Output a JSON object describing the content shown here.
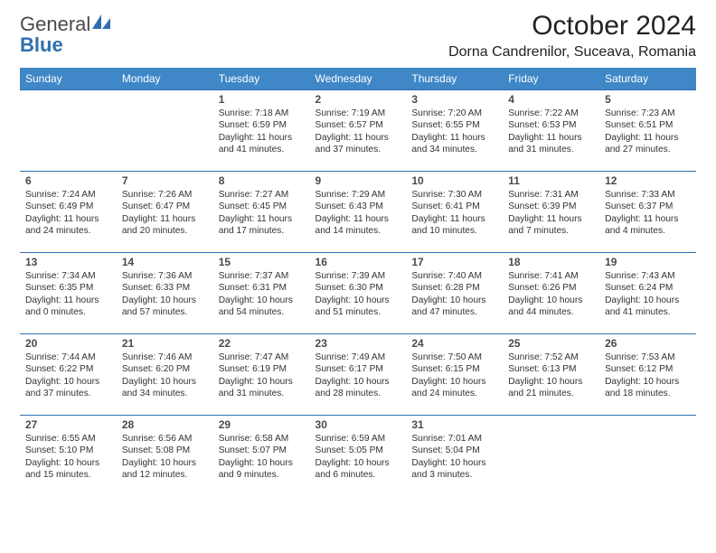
{
  "brand": {
    "line1": "General",
    "line2": "Blue"
  },
  "title": "October 2024",
  "location": "Dorna Candrenilor, Suceava, Romania",
  "theme": {
    "header_bg": "#3f87c7",
    "header_fg": "#ffffff",
    "rule": "#2f6fb0",
    "text": "#333333",
    "daynum": "#4a4a4a",
    "brand_gray": "#4a4a4a",
    "brand_blue": "#2f6fb0",
    "page_bg": "#ffffff"
  },
  "day_names": [
    "Sunday",
    "Monday",
    "Tuesday",
    "Wednesday",
    "Thursday",
    "Friday",
    "Saturday"
  ],
  "weeks": [
    [
      null,
      null,
      {
        "n": "1",
        "lines": [
          "Sunrise: 7:18 AM",
          "Sunset: 6:59 PM",
          "Daylight: 11 hours",
          "and 41 minutes."
        ]
      },
      {
        "n": "2",
        "lines": [
          "Sunrise: 7:19 AM",
          "Sunset: 6:57 PM",
          "Daylight: 11 hours",
          "and 37 minutes."
        ]
      },
      {
        "n": "3",
        "lines": [
          "Sunrise: 7:20 AM",
          "Sunset: 6:55 PM",
          "Daylight: 11 hours",
          "and 34 minutes."
        ]
      },
      {
        "n": "4",
        "lines": [
          "Sunrise: 7:22 AM",
          "Sunset: 6:53 PM",
          "Daylight: 11 hours",
          "and 31 minutes."
        ]
      },
      {
        "n": "5",
        "lines": [
          "Sunrise: 7:23 AM",
          "Sunset: 6:51 PM",
          "Daylight: 11 hours",
          "and 27 minutes."
        ]
      }
    ],
    [
      {
        "n": "6",
        "lines": [
          "Sunrise: 7:24 AM",
          "Sunset: 6:49 PM",
          "Daylight: 11 hours",
          "and 24 minutes."
        ]
      },
      {
        "n": "7",
        "lines": [
          "Sunrise: 7:26 AM",
          "Sunset: 6:47 PM",
          "Daylight: 11 hours",
          "and 20 minutes."
        ]
      },
      {
        "n": "8",
        "lines": [
          "Sunrise: 7:27 AM",
          "Sunset: 6:45 PM",
          "Daylight: 11 hours",
          "and 17 minutes."
        ]
      },
      {
        "n": "9",
        "lines": [
          "Sunrise: 7:29 AM",
          "Sunset: 6:43 PM",
          "Daylight: 11 hours",
          "and 14 minutes."
        ]
      },
      {
        "n": "10",
        "lines": [
          "Sunrise: 7:30 AM",
          "Sunset: 6:41 PM",
          "Daylight: 11 hours",
          "and 10 minutes."
        ]
      },
      {
        "n": "11",
        "lines": [
          "Sunrise: 7:31 AM",
          "Sunset: 6:39 PM",
          "Daylight: 11 hours",
          "and 7 minutes."
        ]
      },
      {
        "n": "12",
        "lines": [
          "Sunrise: 7:33 AM",
          "Sunset: 6:37 PM",
          "Daylight: 11 hours",
          "and 4 minutes."
        ]
      }
    ],
    [
      {
        "n": "13",
        "lines": [
          "Sunrise: 7:34 AM",
          "Sunset: 6:35 PM",
          "Daylight: 11 hours",
          "and 0 minutes."
        ]
      },
      {
        "n": "14",
        "lines": [
          "Sunrise: 7:36 AM",
          "Sunset: 6:33 PM",
          "Daylight: 10 hours",
          "and 57 minutes."
        ]
      },
      {
        "n": "15",
        "lines": [
          "Sunrise: 7:37 AM",
          "Sunset: 6:31 PM",
          "Daylight: 10 hours",
          "and 54 minutes."
        ]
      },
      {
        "n": "16",
        "lines": [
          "Sunrise: 7:39 AM",
          "Sunset: 6:30 PM",
          "Daylight: 10 hours",
          "and 51 minutes."
        ]
      },
      {
        "n": "17",
        "lines": [
          "Sunrise: 7:40 AM",
          "Sunset: 6:28 PM",
          "Daylight: 10 hours",
          "and 47 minutes."
        ]
      },
      {
        "n": "18",
        "lines": [
          "Sunrise: 7:41 AM",
          "Sunset: 6:26 PM",
          "Daylight: 10 hours",
          "and 44 minutes."
        ]
      },
      {
        "n": "19",
        "lines": [
          "Sunrise: 7:43 AM",
          "Sunset: 6:24 PM",
          "Daylight: 10 hours",
          "and 41 minutes."
        ]
      }
    ],
    [
      {
        "n": "20",
        "lines": [
          "Sunrise: 7:44 AM",
          "Sunset: 6:22 PM",
          "Daylight: 10 hours",
          "and 37 minutes."
        ]
      },
      {
        "n": "21",
        "lines": [
          "Sunrise: 7:46 AM",
          "Sunset: 6:20 PM",
          "Daylight: 10 hours",
          "and 34 minutes."
        ]
      },
      {
        "n": "22",
        "lines": [
          "Sunrise: 7:47 AM",
          "Sunset: 6:19 PM",
          "Daylight: 10 hours",
          "and 31 minutes."
        ]
      },
      {
        "n": "23",
        "lines": [
          "Sunrise: 7:49 AM",
          "Sunset: 6:17 PM",
          "Daylight: 10 hours",
          "and 28 minutes."
        ]
      },
      {
        "n": "24",
        "lines": [
          "Sunrise: 7:50 AM",
          "Sunset: 6:15 PM",
          "Daylight: 10 hours",
          "and 24 minutes."
        ]
      },
      {
        "n": "25",
        "lines": [
          "Sunrise: 7:52 AM",
          "Sunset: 6:13 PM",
          "Daylight: 10 hours",
          "and 21 minutes."
        ]
      },
      {
        "n": "26",
        "lines": [
          "Sunrise: 7:53 AM",
          "Sunset: 6:12 PM",
          "Daylight: 10 hours",
          "and 18 minutes."
        ]
      }
    ],
    [
      {
        "n": "27",
        "lines": [
          "Sunrise: 6:55 AM",
          "Sunset: 5:10 PM",
          "Daylight: 10 hours",
          "and 15 minutes."
        ]
      },
      {
        "n": "28",
        "lines": [
          "Sunrise: 6:56 AM",
          "Sunset: 5:08 PM",
          "Daylight: 10 hours",
          "and 12 minutes."
        ]
      },
      {
        "n": "29",
        "lines": [
          "Sunrise: 6:58 AM",
          "Sunset: 5:07 PM",
          "Daylight: 10 hours",
          "and 9 minutes."
        ]
      },
      {
        "n": "30",
        "lines": [
          "Sunrise: 6:59 AM",
          "Sunset: 5:05 PM",
          "Daylight: 10 hours",
          "and 6 minutes."
        ]
      },
      {
        "n": "31",
        "lines": [
          "Sunrise: 7:01 AM",
          "Sunset: 5:04 PM",
          "Daylight: 10 hours",
          "and 3 minutes."
        ]
      },
      null,
      null
    ]
  ]
}
